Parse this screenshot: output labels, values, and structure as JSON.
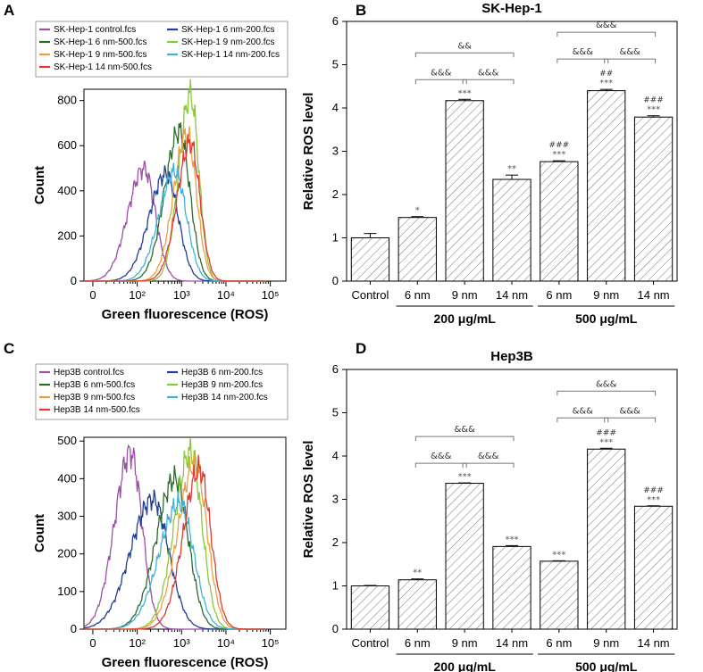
{
  "panels": [
    "A",
    "B",
    "C",
    "D"
  ],
  "colors": {
    "control": "#9b4fa6",
    "n6_500": "#2e6b2e",
    "n9_500": "#e8a23a",
    "n14_500": "#e03a32",
    "n6_200": "#1f3f93",
    "n9_200": "#8cc63f",
    "n14_200": "#3bb3d9",
    "bar_fill": "#ffffff",
    "bar_stroke": "#000000",
    "hatch": "#777777"
  },
  "chart_data": [
    {
      "panel": "A",
      "type": "line",
      "title": "",
      "xlabel": "Green fluorescence (ROS)",
      "ylabel": "Count",
      "ylim": [
        0,
        850
      ],
      "yticks": [
        0,
        200,
        400,
        600,
        800
      ],
      "xtick_labels": [
        "0",
        "10²",
        "10³",
        "10⁴",
        "10⁵"
      ],
      "legend": [
        "SK-Hep-1 control.fcs",
        "SK-Hep-1 6 nm-200.fcs",
        "SK-Hep-1 6 nm-500.fcs",
        "SK-Hep-1 9 nm-200.fcs",
        "SK-Hep-1 9 nm-500.fcs",
        "SK-Hep-1 14 nm-200.fcs",
        "SK-Hep-1 14 nm-500.fcs"
      ],
      "series": [
        {
          "name": "SK-Hep-1 control.fcs",
          "key": "control",
          "peak_x": 2.15,
          "peak": 500,
          "width": 0.36
        },
        {
          "name": "SK-Hep-1 6 nm-200.fcs",
          "key": "n6_200",
          "peak_x": 2.65,
          "peak": 475,
          "width": 0.38
        },
        {
          "name": "SK-Hep-1 6 nm-500.fcs",
          "key": "n6_500",
          "peak_x": 2.95,
          "peak": 665,
          "width": 0.33
        },
        {
          "name": "SK-Hep-1 9 nm-200.fcs",
          "key": "n9_200",
          "peak_x": 3.2,
          "peak": 825,
          "width": 0.26
        },
        {
          "name": "SK-Hep-1 9 nm-500.fcs",
          "key": "n9_500",
          "peak_x": 3.12,
          "peak": 650,
          "width": 0.3
        },
        {
          "name": "SK-Hep-1 14 nm-200.fcs",
          "key": "n14_200",
          "peak_x": 2.85,
          "peak": 485,
          "width": 0.36
        },
        {
          "name": "SK-Hep-1 14 nm-500.fcs",
          "key": "n14_500",
          "peak_x": 3.2,
          "peak": 610,
          "width": 0.3
        }
      ]
    },
    {
      "panel": "B",
      "type": "bar",
      "title": "SK-Hep-1",
      "xlabel": "",
      "ylabel": "Relative ROS level",
      "ylim": [
        0,
        6
      ],
      "yticks": [
        0,
        1,
        2,
        3,
        4,
        5,
        6
      ],
      "categories": [
        "Control",
        "6 nm",
        "9 nm",
        "14 nm",
        "6 nm",
        "9 nm",
        "14 nm"
      ],
      "values": [
        1.0,
        1.47,
        4.17,
        2.35,
        2.76,
        4.4,
        3.79
      ],
      "errors": [
        0.1,
        0.02,
        0.03,
        0.1,
        0.02,
        0.03,
        0.03
      ],
      "sig": [
        "",
        "*",
        "***",
        "**",
        "***",
        "***",
        "***"
      ],
      "hash": [
        "",
        "",
        "",
        "",
        "###",
        "##",
        "###"
      ],
      "groups": [
        {
          "label": "200 μg/mL",
          "from": 1,
          "to": 3
        },
        {
          "label": "500 μg/mL",
          "from": 4,
          "to": 6
        }
      ],
      "brackets": [
        {
          "from": 1,
          "to": 2,
          "level": 1,
          "text": "&&&"
        },
        {
          "from": 2,
          "to": 3,
          "level": 1,
          "text": "&&&"
        },
        {
          "from": 1,
          "to": 3,
          "level": 2,
          "text": "&&"
        },
        {
          "from": 4,
          "to": 5,
          "level": 1,
          "text": "&&&"
        },
        {
          "from": 5,
          "to": 6,
          "level": 1,
          "text": "&&&"
        },
        {
          "from": 4,
          "to": 6,
          "level": 2,
          "text": "&&&"
        }
      ]
    },
    {
      "panel": "C",
      "type": "line",
      "title": "",
      "xlabel": "Green fluorescence (ROS)",
      "ylabel": "Count",
      "ylim": [
        0,
        510
      ],
      "yticks": [
        0,
        100,
        200,
        300,
        400,
        500
      ],
      "xtick_labels": [
        "0",
        "10²",
        "10³",
        "10⁴",
        "10⁵"
      ],
      "legend": [
        "Hep3B control.fcs",
        "Hep3B 6 nm-200.fcs",
        "Hep3B 6 nm-500.fcs",
        "Hep3B 9 nm-200.fcs",
        "Hep3B 9 nm-500.fcs",
        "Hep3B 14 nm-200.fcs",
        "Hep3B 14 nm-500.fcs"
      ],
      "series": [
        {
          "name": "Hep3B control.fcs",
          "key": "control",
          "peak_x": 1.85,
          "peak": 470,
          "width": 0.36
        },
        {
          "name": "Hep3B 6 nm-200.fcs",
          "key": "n6_200",
          "peak_x": 2.35,
          "peak": 345,
          "width": 0.5
        },
        {
          "name": "Hep3B 6 nm-500.fcs",
          "key": "n6_500",
          "peak_x": 2.85,
          "peak": 400,
          "width": 0.42
        },
        {
          "name": "Hep3B 9 nm-200.fcs",
          "key": "n9_200",
          "peak_x": 3.2,
          "peak": 470,
          "width": 0.36
        },
        {
          "name": "Hep3B 9 nm-500.fcs",
          "key": "n9_500",
          "peak_x": 3.3,
          "peak": 440,
          "width": 0.38
        },
        {
          "name": "Hep3B 14 nm-200.fcs",
          "key": "n14_200",
          "peak_x": 2.95,
          "peak": 335,
          "width": 0.45
        },
        {
          "name": "Hep3B 14 nm-500.fcs",
          "key": "n14_500",
          "peak_x": 3.4,
          "peak": 425,
          "width": 0.36
        }
      ]
    },
    {
      "panel": "D",
      "type": "bar",
      "title": "Hep3B",
      "xlabel": "",
      "ylabel": "Relative ROS level",
      "ylim": [
        0,
        6
      ],
      "yticks": [
        0,
        1,
        2,
        3,
        4,
        5,
        6
      ],
      "categories": [
        "Control",
        "6 nm",
        "9 nm",
        "14 nm",
        "6 nm",
        "9 nm",
        "14 nm"
      ],
      "values": [
        1.0,
        1.14,
        3.37,
        1.91,
        1.57,
        4.16,
        2.84
      ],
      "errors": [
        0.01,
        0.02,
        0.01,
        0.02,
        0.01,
        0.02,
        0.01
      ],
      "sig": [
        "",
        "**",
        "***",
        "***",
        "***",
        "***",
        "***"
      ],
      "hash": [
        "",
        "",
        "",
        "",
        "",
        "###",
        "###"
      ],
      "groups": [
        {
          "label": "200 μg/mL",
          "from": 1,
          "to": 3
        },
        {
          "label": "500 μg/mL",
          "from": 4,
          "to": 6
        }
      ],
      "brackets": [
        {
          "from": 1,
          "to": 2,
          "level": 1,
          "text": "&&&"
        },
        {
          "from": 2,
          "to": 3,
          "level": 1,
          "text": "&&&"
        },
        {
          "from": 1,
          "to": 3,
          "level": 2,
          "text": "&&&"
        },
        {
          "from": 4,
          "to": 5,
          "level": 1,
          "text": "&&&"
        },
        {
          "from": 5,
          "to": 6,
          "level": 1,
          "text": "&&&"
        },
        {
          "from": 4,
          "to": 6,
          "level": 2,
          "text": "&&&"
        }
      ]
    }
  ]
}
